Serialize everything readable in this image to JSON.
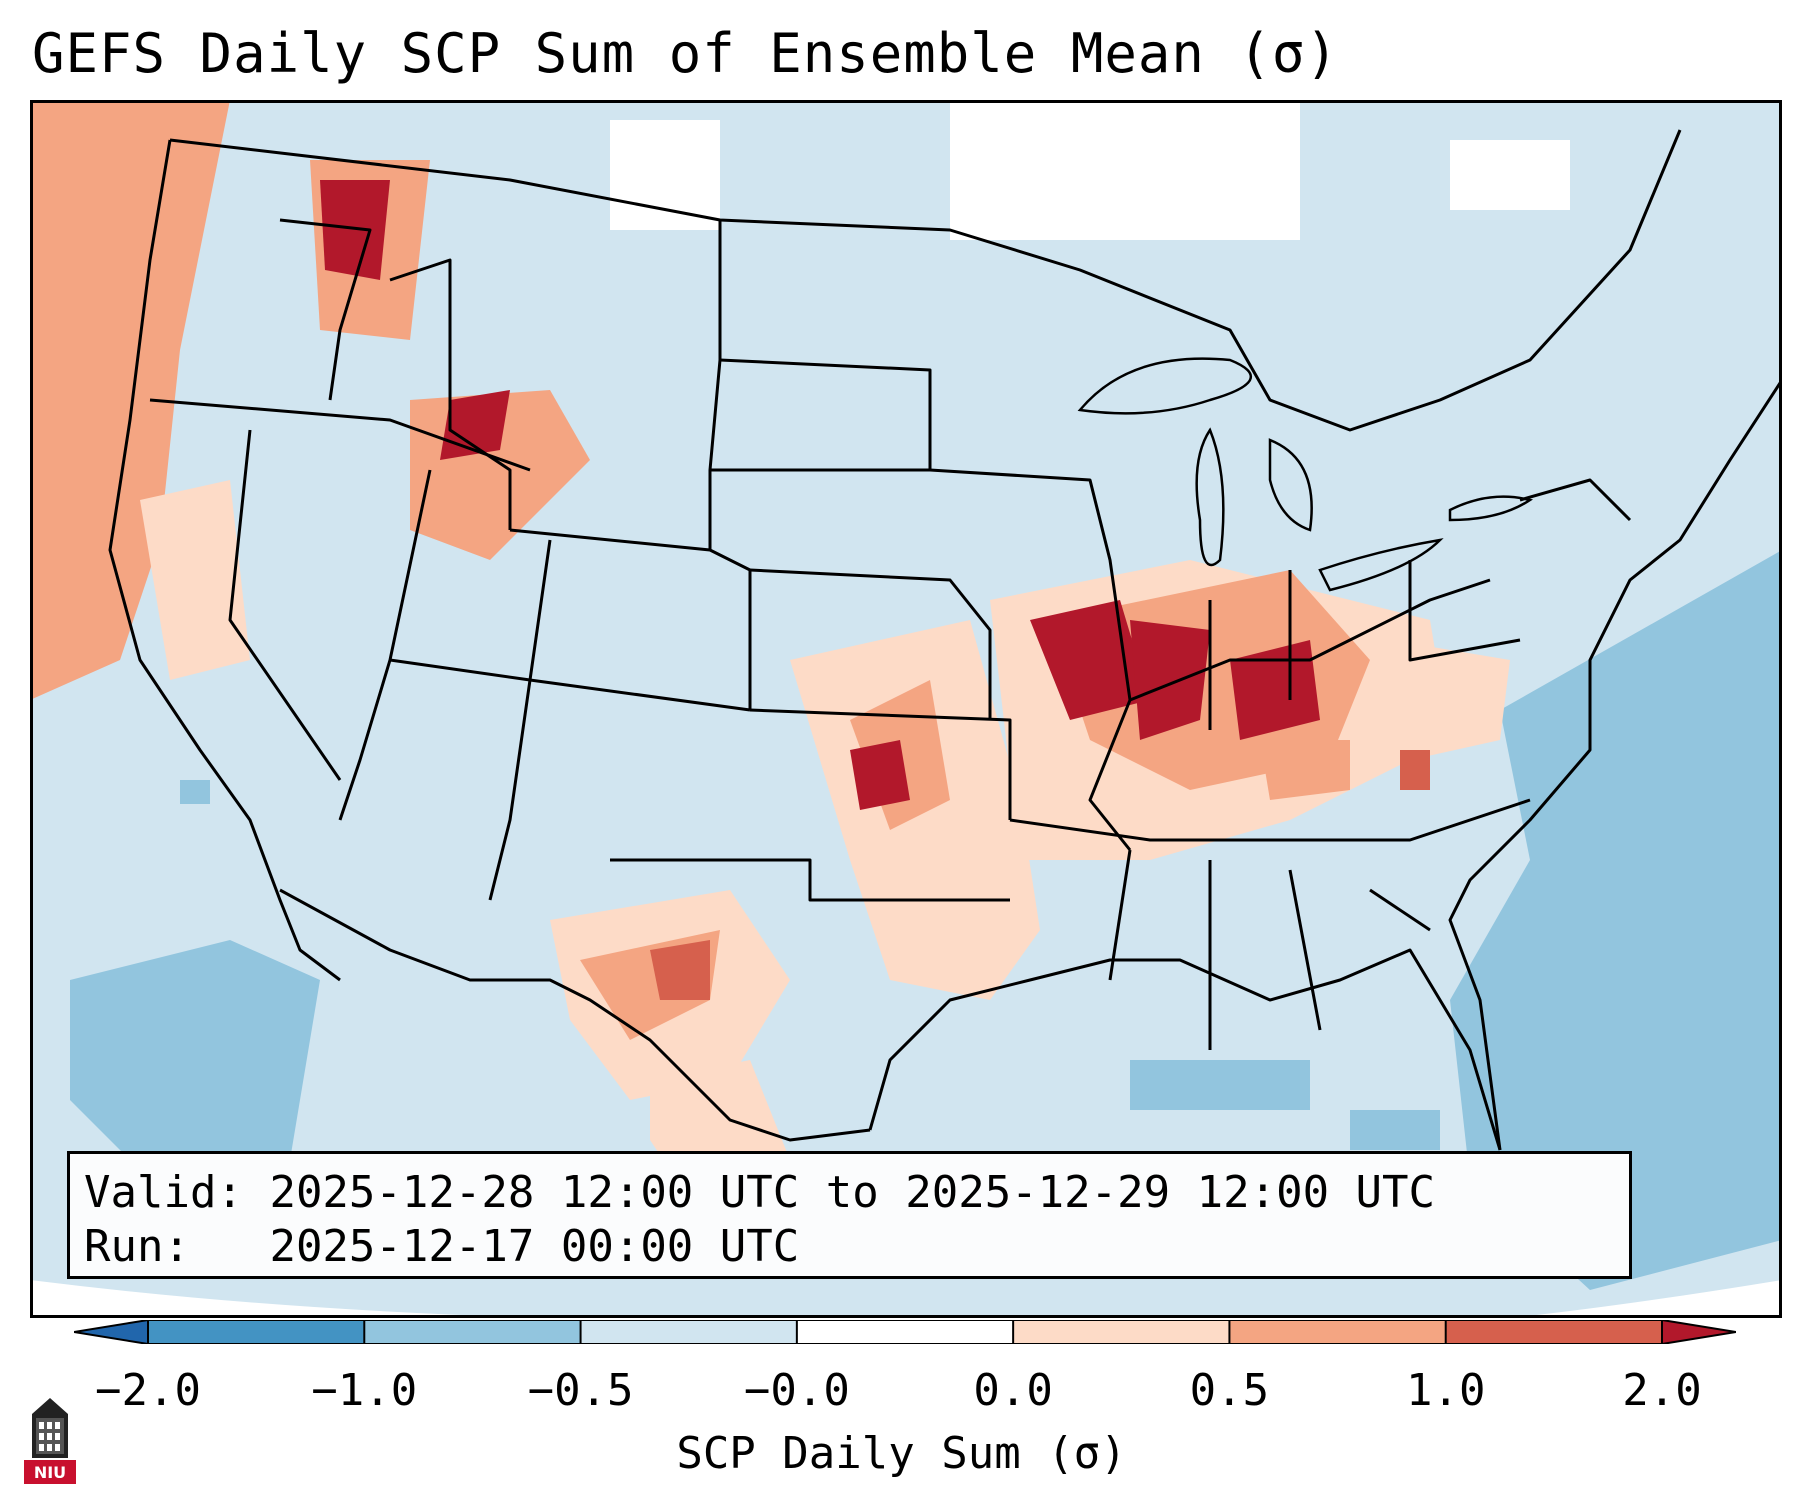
{
  "title": "GEFS Daily SCP Sum of Ensemble Mean (σ)",
  "info": {
    "valid_label": "Valid:",
    "valid_value": "2025-12-28 12:00 UTC to 2025-12-29 12:00 UTC",
    "run_label": "Run:",
    "run_value": "2025-12-17 00:00 UTC"
  },
  "colorbar": {
    "label": "SCP Daily Sum (σ)",
    "ticks": [
      "−2.0",
      "−1.0",
      "−0.5",
      "−0.0",
      "0.0",
      "0.5",
      "1.0",
      "2.0"
    ],
    "colors": [
      "#2166ac",
      "#4393c3",
      "#92c5de",
      "#d1e5f0",
      "#ffffff",
      "#fddbc7",
      "#f4a582",
      "#d6604d",
      "#b2182b"
    ]
  },
  "logo": {
    "text": "NIU"
  },
  "colors": {
    "ocean_bg": "#d1e5f0",
    "darker_ocean": "#92c5de",
    "high_anomaly": "#b2182b",
    "moderate_anomaly": "#d6604d",
    "light_anomaly": "#f4a582",
    "faint_anomaly": "#fddbc7",
    "borders": "#000000"
  }
}
